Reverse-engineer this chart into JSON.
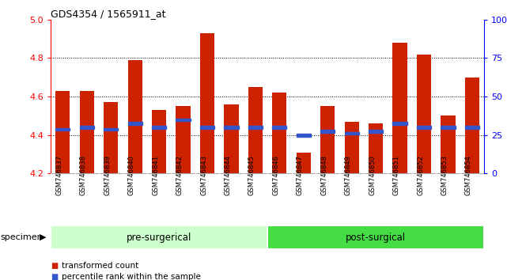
{
  "title": "GDS4354 / 1565911_at",
  "samples": [
    "GSM746837",
    "GSM746838",
    "GSM746839",
    "GSM746840",
    "GSM746841",
    "GSM746842",
    "GSM746843",
    "GSM746844",
    "GSM746845",
    "GSM746846",
    "GSM746847",
    "GSM746848",
    "GSM746849",
    "GSM746850",
    "GSM746851",
    "GSM746852",
    "GSM746853",
    "GSM746854"
  ],
  "bar_tops": [
    4.63,
    4.63,
    4.57,
    4.79,
    4.53,
    4.55,
    4.93,
    4.56,
    4.65,
    4.62,
    4.31,
    4.55,
    4.47,
    4.46,
    4.88,
    4.82,
    4.5,
    4.7
  ],
  "blue_markers": [
    4.43,
    4.44,
    4.43,
    4.46,
    4.44,
    4.48,
    4.44,
    4.44,
    4.44,
    4.44,
    4.4,
    4.42,
    4.41,
    4.42,
    4.46,
    4.44,
    4.44,
    4.44
  ],
  "bar_bottom": 4.2,
  "ylim_min": 4.2,
  "ylim_max": 5.0,
  "yticks": [
    4.2,
    4.4,
    4.6,
    4.8,
    5.0
  ],
  "right_yticks": [
    0,
    25,
    50,
    75,
    100
  ],
  "right_ytick_labels": [
    "0",
    "25",
    "50",
    "75",
    "100%"
  ],
  "bar_color": "#cc2200",
  "blue_color": "#3355cc",
  "pre_surgical_count": 9,
  "post_surgical_count": 9,
  "pre_label": "pre-surgerical",
  "post_label": "post-surgical",
  "specimen_label": "specimen",
  "legend_red_label": "transformed count",
  "legend_blue_label": "percentile rank within the sample",
  "pre_color": "#ccffcc",
  "post_color": "#44dd44",
  "tick_label_area_color": "#cccccc",
  "figure_width": 6.41,
  "figure_height": 3.54
}
